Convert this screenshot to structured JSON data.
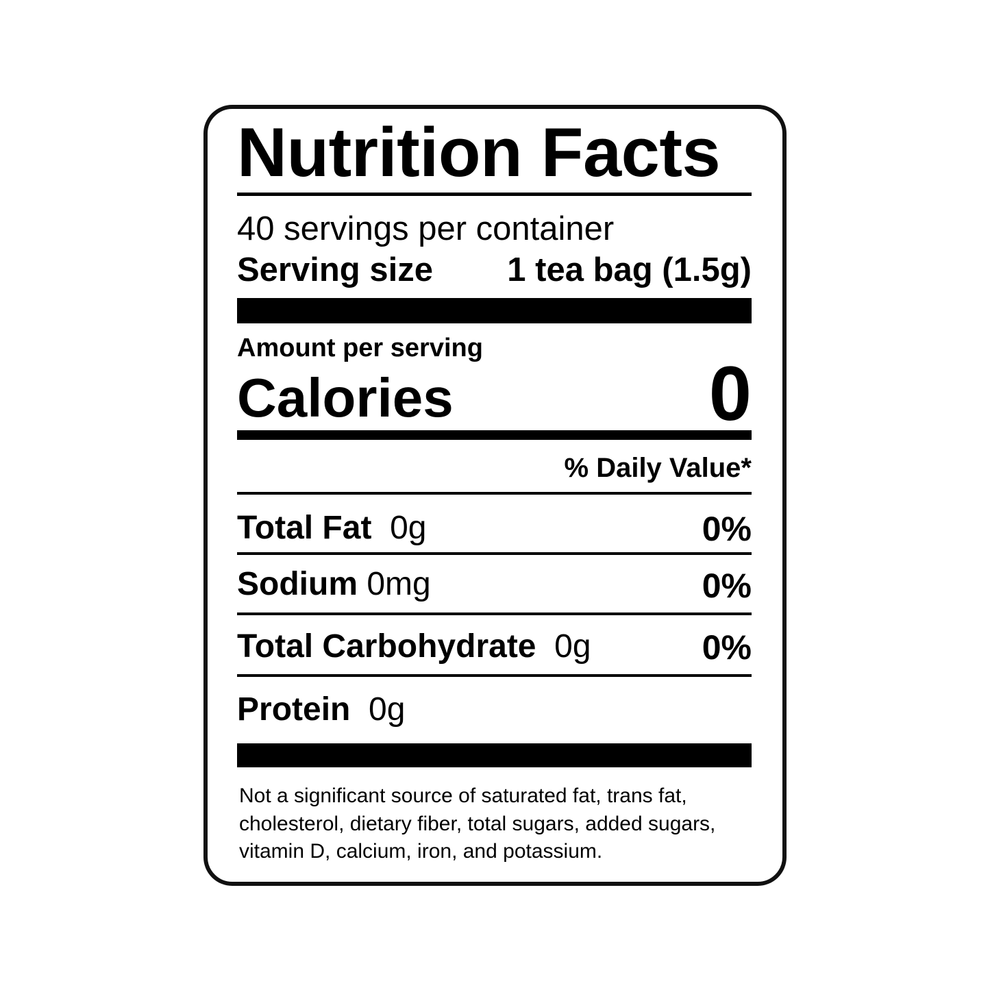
{
  "title": "Nutrition Facts",
  "servings_per_container": "40 servings per container",
  "serving_size": {
    "label": "Serving size",
    "value": "1 tea bag (1.5g)"
  },
  "amount_per_serving": "Amount per serving",
  "calories": {
    "label": "Calories",
    "value": "0"
  },
  "daily_value_header": "% Daily Value*",
  "nutrients": [
    {
      "name": "Total Fat",
      "amount": "0g",
      "dv": "0%"
    },
    {
      "name": "Sodium",
      "amount": "0mg",
      "dv": "0%"
    },
    {
      "name": "Total Carbohydrate",
      "amount": "0g",
      "dv": "0%"
    },
    {
      "name": "Protein",
      "amount": "0g",
      "dv": ""
    }
  ],
  "footnote": [
    "Not a significant source of saturated fat, trans fat,",
    "cholesterol, dietary fiber, total sugars, added sugars,",
    "vitamin D, calcium, iron, and potassium."
  ]
}
